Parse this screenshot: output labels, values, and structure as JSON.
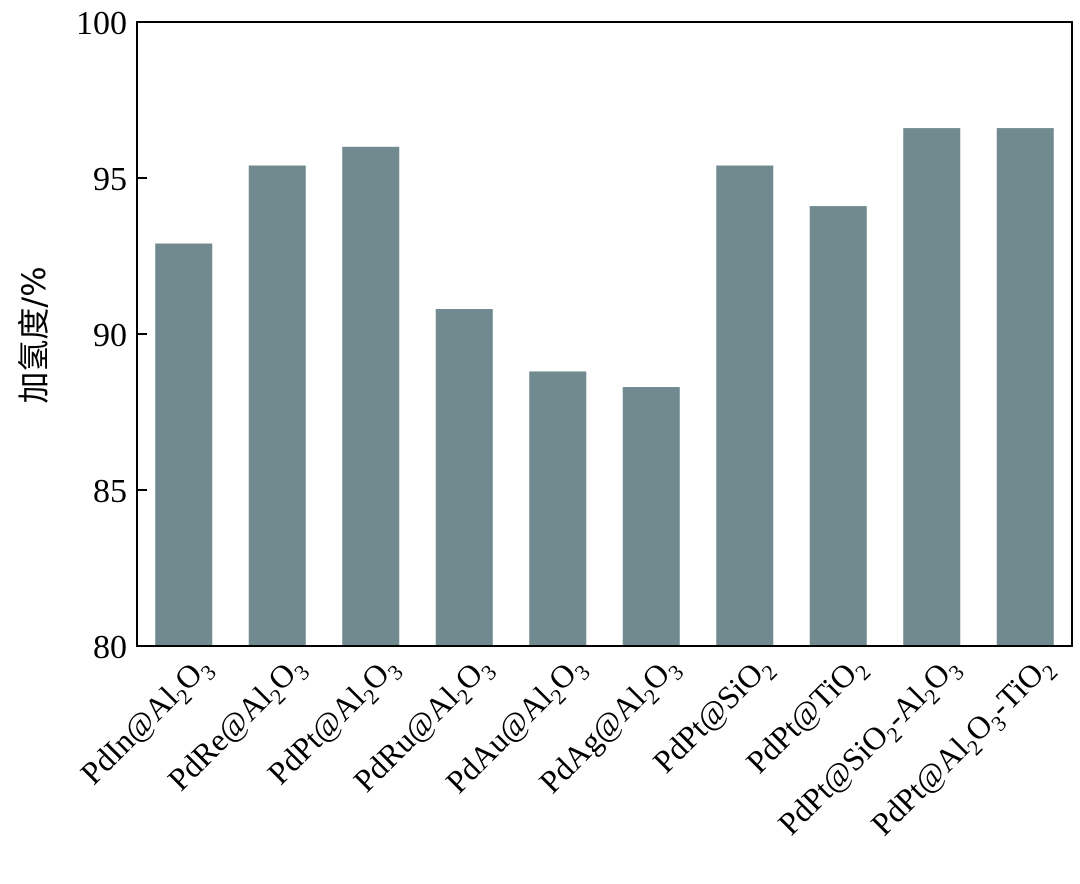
{
  "chart_data": {
    "type": "bar",
    "title": "",
    "xlabel": "",
    "ylabel": "加氢度/%",
    "ylim": [
      80,
      100
    ],
    "yticks": [
      80,
      85,
      90,
      95,
      100
    ],
    "grid": false,
    "categories": [
      {
        "label": [
          {
            "t": "PdIn@Al"
          },
          {
            "t": "2",
            "sub": true
          },
          {
            "t": "O"
          },
          {
            "t": "3",
            "sub": true
          }
        ]
      },
      {
        "label": [
          {
            "t": "PdRe@Al"
          },
          {
            "t": "2",
            "sub": true
          },
          {
            "t": "O"
          },
          {
            "t": "3",
            "sub": true
          }
        ]
      },
      {
        "label": [
          {
            "t": "PdPt@Al"
          },
          {
            "t": "2",
            "sub": true
          },
          {
            "t": "O"
          },
          {
            "t": "3",
            "sub": true
          }
        ]
      },
      {
        "label": [
          {
            "t": "PdRu@Al"
          },
          {
            "t": "2",
            "sub": true
          },
          {
            "t": "O"
          },
          {
            "t": "3",
            "sub": true
          }
        ]
      },
      {
        "label": [
          {
            "t": "PdAu@Al"
          },
          {
            "t": "2",
            "sub": true
          },
          {
            "t": "O"
          },
          {
            "t": "3",
            "sub": true
          }
        ]
      },
      {
        "label": [
          {
            "t": "PdAg@Al"
          },
          {
            "t": "2",
            "sub": true
          },
          {
            "t": "O"
          },
          {
            "t": "3",
            "sub": true
          }
        ]
      },
      {
        "label": [
          {
            "t": "PdPt@SiO"
          },
          {
            "t": "2",
            "sub": true
          }
        ]
      },
      {
        "label": [
          {
            "t": "PdPt@TiO"
          },
          {
            "t": "2",
            "sub": true
          }
        ]
      },
      {
        "label": [
          {
            "t": "PdPt@SiO"
          },
          {
            "t": "2",
            "sub": true
          },
          {
            "t": "-Al"
          },
          {
            "t": "2",
            "sub": true
          },
          {
            "t": "O"
          },
          {
            "t": "3",
            "sub": true
          }
        ]
      },
      {
        "label": [
          {
            "t": "PdPt@Al"
          },
          {
            "t": "2",
            "sub": true
          },
          {
            "t": "O"
          },
          {
            "t": "3",
            "sub": true
          },
          {
            "t": "-TiO"
          },
          {
            "t": "2",
            "sub": true
          }
        ]
      }
    ],
    "values": [
      92.9,
      95.4,
      96.0,
      90.8,
      88.8,
      88.3,
      95.4,
      94.1,
      96.6,
      96.6
    ],
    "bar_color": "#718a8f",
    "axis_color": "#000000"
  }
}
